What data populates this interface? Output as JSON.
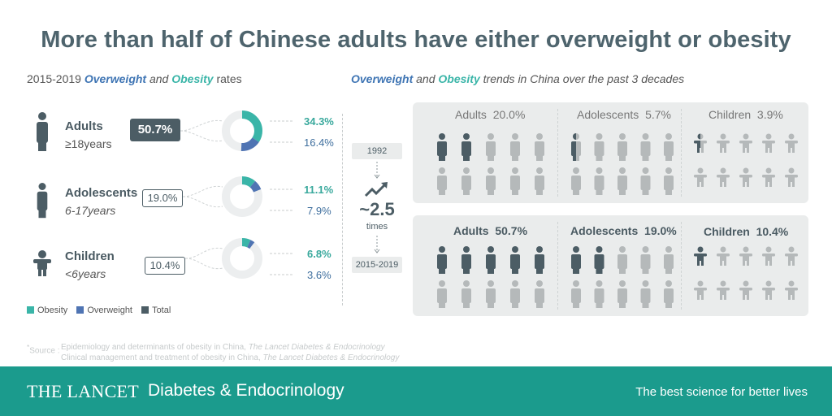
{
  "title": "More than half of Chinese adults have either overweight or obesity",
  "left_heading": {
    "years": "2015-2019",
    "overweight": "Overweight",
    "and": "and",
    "obesity": "Obesity",
    "rates": "rates"
  },
  "right_heading": {
    "overweight": "Overweight",
    "and": "and",
    "obesity": "Obesity",
    "rest": "trends in China over the past 3 decades"
  },
  "groups": [
    {
      "name": "Adults",
      "age": "≥18years",
      "total_label": "50.7%",
      "total": 50.7,
      "obesity_label": "16.4%",
      "obesity": 16.4,
      "overweight_label": "34.3%",
      "overweight": 34.3
    },
    {
      "name": "Adolescents",
      "age": "6-17years",
      "total_label": "19.0%",
      "total": 19.0,
      "obesity_label": "7.9%",
      "obesity": 7.9,
      "overweight_label": "11.1%",
      "overweight": 11.1
    },
    {
      "name": "Children",
      "age": "<6years",
      "total_label": "10.4%",
      "total": 10.4,
      "obesity_label": "3.6%",
      "obesity": 3.6,
      "overweight_label": "6.8%",
      "overweight": 6.8
    }
  ],
  "legend": {
    "obesity": "Obesity",
    "overweight": "Overweight",
    "total": "Total"
  },
  "trend": {
    "year_1992": "1992",
    "multiplier": "~2.5",
    "times": "times",
    "year_2015": "2015-2019"
  },
  "panels_1992": [
    {
      "name": "Adults",
      "value_label": "20.0%",
      "value": 20.0
    },
    {
      "name": "Adolescents",
      "value_label": "5.7%",
      "value": 5.7
    },
    {
      "name": "Children",
      "value_label": "3.9%",
      "value": 3.9
    }
  ],
  "panels_2015": [
    {
      "name": "Adults",
      "value_label": "50.7%",
      "value": 50.7
    },
    {
      "name": "Adolescents",
      "value_label": "19.0%",
      "value": 19.0
    },
    {
      "name": "Children",
      "value_label": "10.4%",
      "value": 10.4
    }
  ],
  "source": {
    "label": "Source",
    "line1_pre": "Epidemiology and determinants of obesity in China,",
    "line1_journal": "The Lancet Diabetes & Endocrinology",
    "line2_pre": "Clinical management and treatment of obesity in China,",
    "line2_journal": "The Lancet Diabetes & Endocrinology"
  },
  "footer": {
    "brand": "THE LANCET",
    "journal": "Diabetes & Endocrinology",
    "slogan": "The best science for better lives"
  },
  "colors": {
    "obesity": "#3ab5a8",
    "overweight": "#4f74b3",
    "total": "#4c5d65",
    "light": "#b5b9ba",
    "ring_bg": "#eceeef"
  }
}
